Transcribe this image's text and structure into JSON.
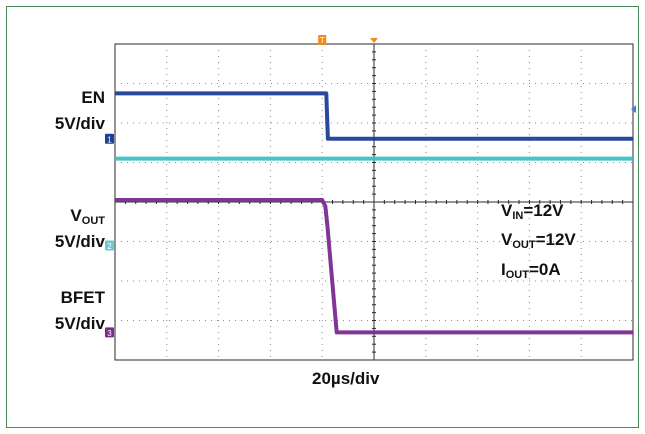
{
  "chart_data": {
    "type": "line",
    "x_scale_label": "20µs/div",
    "x_divisions": 10,
    "y_divisions": 8,
    "x_unit": "div",
    "y_unit": "div",
    "trigger_marker": "T",
    "series": [
      {
        "name": "EN",
        "scale_text": "5V/div",
        "channel": "1",
        "color": "#1f3f99",
        "marker_color": "#1f3f99",
        "x": [
          0,
          4.08,
          4.11,
          10
        ],
        "y": [
          6.75,
          6.75,
          5.6,
          5.6
        ]
      },
      {
        "name": "",
        "scale_text": "",
        "channel": "",
        "color": "#3cc1c4",
        "x": [
          0,
          10
        ],
        "y": [
          5.1,
          5.1
        ]
      },
      {
        "name": "VOUT",
        "scale_text": "5V/div",
        "channel": "2",
        "color": "#7b2a91",
        "marker_color": "#6fc7d6",
        "x": [
          0,
          4.0,
          4.06,
          4.1,
          4.18,
          4.28,
          10
        ],
        "y": [
          4.05,
          4.05,
          3.9,
          3.4,
          2.2,
          0.7,
          0.7
        ]
      }
    ],
    "annotations": [
      {
        "main": "V",
        "sub": "IN",
        "rest": "=12V"
      },
      {
        "main": "V",
        "sub": "OUT",
        "rest": "=12V"
      },
      {
        "main": "I",
        "sub": "OUT",
        "rest": "=0A"
      }
    ],
    "extra_channel": {
      "name": "BFET",
      "scale_text": "5V/div",
      "channel": "3",
      "marker_color": "#7b2a91"
    },
    "grid": true
  }
}
